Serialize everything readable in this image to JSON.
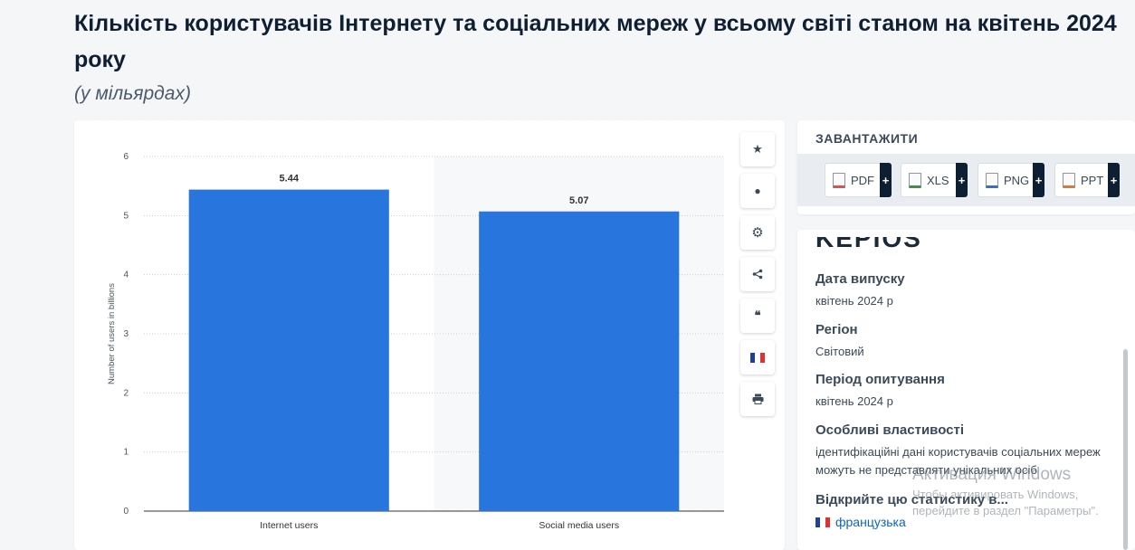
{
  "header": {
    "title": "Кількість користувачів Інтернету та соціальних мереж у всьому світі станом на квітень 2024 року",
    "subtitle": "(у мільярдах)"
  },
  "chart_data": {
    "type": "bar",
    "categories": [
      "Internet users",
      "Social media users"
    ],
    "values": [
      5.44,
      5.07
    ],
    "value_labels": [
      "5.44",
      "5.07"
    ],
    "title": "",
    "xlabel": "",
    "ylabel": "Number of users in billions",
    "ylim": [
      0,
      6
    ],
    "yticks": [
      0,
      1,
      2,
      3,
      4,
      5,
      6
    ],
    "grid": true,
    "bar_color": "#2876dd"
  },
  "side_tools": [
    {
      "icon": "star-icon",
      "glyph": "★"
    },
    {
      "icon": "bell-icon",
      "glyph": "🔔"
    },
    {
      "icon": "gear-icon",
      "glyph": "⚙"
    },
    {
      "icon": "share-icon",
      "glyph": "⋖"
    },
    {
      "icon": "quote-icon",
      "glyph": "❝"
    },
    {
      "icon": "french-flag-icon",
      "glyph": ""
    },
    {
      "icon": "print-icon",
      "glyph": "⎙"
    }
  ],
  "download": {
    "title": "ЗАВАНТАЖИТИ",
    "buttons": [
      {
        "label": "PDF",
        "plus": "+",
        "accent": "#d9534f"
      },
      {
        "label": "XLS",
        "plus": "+",
        "accent": "#4a8a4a"
      },
      {
        "label": "PNG",
        "plus": "+",
        "accent": "#3b6fb6"
      },
      {
        "label": "PPT",
        "plus": "+",
        "accent": "#d87a3a"
      }
    ]
  },
  "info": {
    "logo_text": "KEPIOS",
    "release_label": "Дата випуску",
    "release_value": "квітень 2024 р",
    "region_label": "Регіон",
    "region_value": "Світовий",
    "period_label": "Період опитування",
    "period_value": "квітень 2024 р",
    "features_label": "Особливі властивості",
    "features_value": "ідентифікаційні дані користувачів соціальних мереж можуть не представляти унікальних осіб",
    "open_label": "Відкрийте цю статистику в...",
    "open_link": "французька"
  },
  "watermark": {
    "title": "Активация Windows",
    "text": "Чтобы активировать Windows, перейдите в раздел \"Параметры\"."
  }
}
